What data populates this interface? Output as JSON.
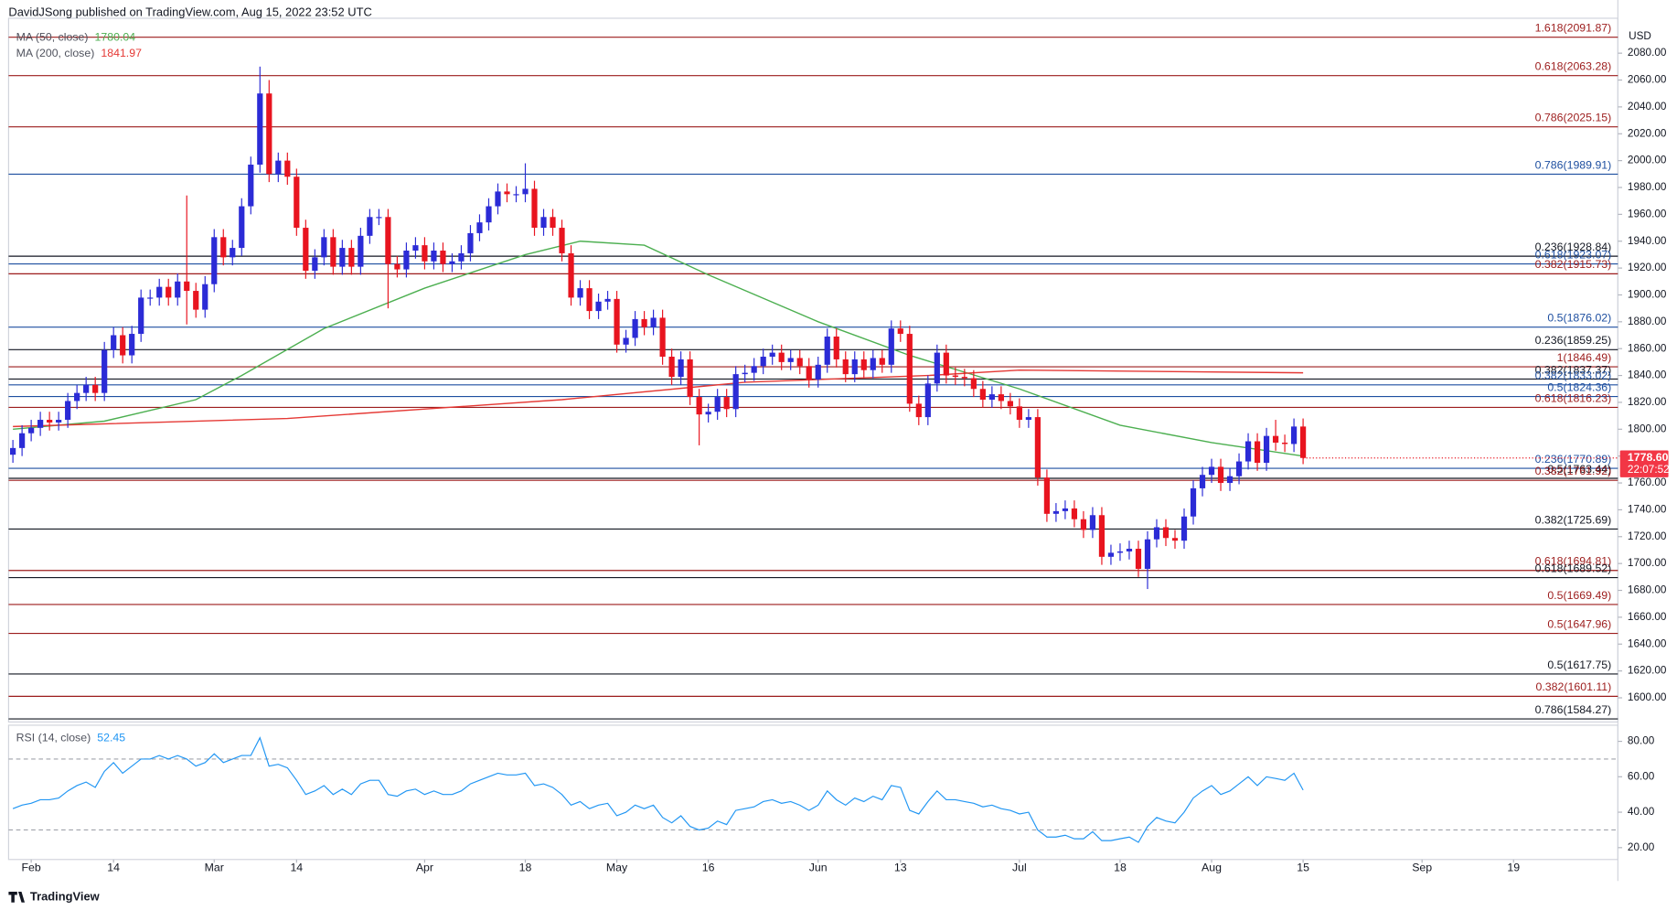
{
  "header": "DavidJSong published on TradingView.com, Aug 15, 2022 23:52 UTC",
  "logo": "TradingView",
  "chart_data": [
    {
      "type": "candlestick",
      "currency": "USD",
      "up_color": "#2b2bd6",
      "down_color": "#e8141f",
      "xlim": [
        -0.47,
        175.4
      ],
      "ylim": [
        1582,
        2106
      ],
      "xticks": [
        {
          "value": 2,
          "label": "Feb"
        },
        {
          "value": 11,
          "label": "14"
        },
        {
          "value": 22,
          "label": "Mar"
        },
        {
          "value": 31,
          "label": "14"
        },
        {
          "value": 45,
          "label": "Apr"
        },
        {
          "value": 56,
          "label": "18"
        },
        {
          "value": 66,
          "label": "May"
        },
        {
          "value": 76,
          "label": "16"
        },
        {
          "value": 88,
          "label": "Jun"
        },
        {
          "value": 97,
          "label": "13"
        },
        {
          "value": 110,
          "label": "Jul"
        },
        {
          "value": 121,
          "label": "18"
        },
        {
          "value": 131,
          "label": "Aug"
        },
        {
          "value": 141,
          "label": "15"
        },
        {
          "value": 154,
          "label": "Sep"
        },
        {
          "value": 164,
          "label": "19"
        }
      ],
      "yticks": [
        {
          "value": 1600,
          "label": "1600.00"
        },
        {
          "value": 1620,
          "label": "1620.00"
        },
        {
          "value": 1640,
          "label": "1640.00"
        },
        {
          "value": 1660,
          "label": "1660.00"
        },
        {
          "value": 1680,
          "label": "1680.00"
        },
        {
          "value": 1700,
          "label": "1700.00"
        },
        {
          "value": 1720,
          "label": "1720.00"
        },
        {
          "value": 1740,
          "label": "1740.00"
        },
        {
          "value": 1760,
          "label": "1760.00"
        },
        {
          "value": 1780,
          "label": "1780.00"
        },
        {
          "value": 1800,
          "label": "1800.00"
        },
        {
          "value": 1820,
          "label": "1820.00"
        },
        {
          "value": 1840,
          "label": "1840.00"
        },
        {
          "value": 1860,
          "label": "1860.00"
        },
        {
          "value": 1880,
          "label": "1880.00"
        },
        {
          "value": 1900,
          "label": "1900.00"
        },
        {
          "value": 1920,
          "label": "1920.00"
        },
        {
          "value": 1940,
          "label": "1940.00"
        },
        {
          "value": 1960,
          "label": "1960.00"
        },
        {
          "value": 1980,
          "label": "1980.00"
        },
        {
          "value": 2000,
          "label": "2000.00"
        },
        {
          "value": 2020,
          "label": "2020.00"
        },
        {
          "value": 2040,
          "label": "2040.00"
        },
        {
          "value": 2060,
          "label": "2060.00"
        },
        {
          "value": 2080,
          "label": "2080.00"
        }
      ],
      "open": [
        1781,
        1786,
        1797,
        1801,
        1807,
        1805,
        1807,
        1821,
        1827,
        1833,
        1827,
        1859,
        1870,
        1855,
        1871,
        1898,
        1898,
        1906,
        1898,
        1910,
        1903,
        1889,
        1908,
        1943,
        1928,
        1935,
        1966,
        1997,
        2050,
        1990,
        2000,
        1988,
        1950,
        1918,
        1928,
        1943,
        1921,
        1935,
        1921,
        1944,
        1958,
        1958,
        1923,
        1919,
        1933,
        1937,
        1925,
        1933,
        1923,
        1925,
        1931,
        1946,
        1954,
        1966,
        1977,
        1975,
        1975,
        1979,
        1950,
        1958,
        1950,
        1931,
        1898,
        1905,
        1888,
        1895,
        1897,
        1863,
        1868,
        1882,
        1876,
        1883,
        1854,
        1839,
        1852,
        1824,
        1811,
        1813,
        1824,
        1815,
        1841,
        1842,
        1847,
        1854,
        1857,
        1850,
        1853,
        1847,
        1837,
        1848,
        1869,
        1852,
        1841,
        1852,
        1844,
        1853,
        1848,
        1875,
        1871,
        1819,
        1809,
        1834,
        1857,
        1840,
        1839,
        1838,
        1830,
        1822,
        1826,
        1821,
        1817,
        1807,
        1809,
        1764,
        1737,
        1739,
        1741,
        1733,
        1725,
        1736,
        1705,
        1708,
        1709,
        1711,
        1696,
        1718,
        1727,
        1719,
        1717,
        1735,
        1756,
        1766,
        1772,
        1760,
        1765,
        1776,
        1791,
        1775,
        1795,
        1790,
        1789,
        1802
      ],
      "high": [
        1792,
        1803,
        1807,
        1813,
        1813,
        1813,
        1827,
        1833,
        1839,
        1839,
        1865,
        1876,
        1876,
        1877,
        1904,
        1904,
        1912,
        1912,
        1916,
        1974,
        1909,
        1914,
        1949,
        1949,
        1941,
        1972,
        2003,
        2070,
        2060,
        2006,
        2006,
        1994,
        1956,
        1934,
        1949,
        1949,
        1941,
        1941,
        1950,
        1964,
        1964,
        1964,
        1929,
        1939,
        1943,
        1943,
        1939,
        1939,
        1931,
        1937,
        1952,
        1960,
        1972,
        1983,
        1983,
        1981,
        1998,
        1985,
        1964,
        1964,
        1956,
        1937,
        1911,
        1911,
        1901,
        1903,
        1903,
        1874,
        1888,
        1888,
        1889,
        1889,
        1860,
        1858,
        1858,
        1830,
        1819,
        1830,
        1830,
        1847,
        1848,
        1853,
        1860,
        1863,
        1863,
        1859,
        1859,
        1853,
        1854,
        1875,
        1875,
        1858,
        1858,
        1858,
        1859,
        1859,
        1881,
        1881,
        1877,
        1825,
        1840,
        1863,
        1863,
        1846,
        1845,
        1844,
        1836,
        1832,
        1832,
        1827,
        1823,
        1815,
        1815,
        1770,
        1745,
        1747,
        1747,
        1739,
        1742,
        1742,
        1714,
        1715,
        1717,
        1717,
        1724,
        1733,
        1733,
        1725,
        1741,
        1762,
        1772,
        1778,
        1778,
        1771,
        1782,
        1797,
        1797,
        1801,
        1807,
        1796,
        1808,
        1808
      ],
      "low": [
        1775,
        1780,
        1791,
        1795,
        1799,
        1799,
        1801,
        1815,
        1821,
        1821,
        1821,
        1853,
        1849,
        1849,
        1865,
        1892,
        1892,
        1892,
        1892,
        1878,
        1883,
        1883,
        1902,
        1922,
        1922,
        1929,
        1960,
        1991,
        1984,
        1984,
        1982,
        1944,
        1912,
        1912,
        1922,
        1915,
        1915,
        1915,
        1915,
        1938,
        1952,
        1890,
        1913,
        1913,
        1927,
        1919,
        1919,
        1917,
        1917,
        1919,
        1925,
        1940,
        1948,
        1960,
        1969,
        1969,
        1969,
        1944,
        1944,
        1944,
        1925,
        1892,
        1892,
        1882,
        1882,
        1889,
        1857,
        1857,
        1862,
        1870,
        1870,
        1848,
        1833,
        1833,
        1818,
        1788,
        1805,
        1807,
        1809,
        1809,
        1835,
        1836,
        1841,
        1848,
        1844,
        1844,
        1841,
        1831,
        1831,
        1842,
        1846,
        1835,
        1835,
        1838,
        1838,
        1842,
        1842,
        1865,
        1813,
        1803,
        1803,
        1828,
        1834,
        1833,
        1832,
        1824,
        1816,
        1816,
        1815,
        1811,
        1801,
        1801,
        1758,
        1731,
        1731,
        1733,
        1727,
        1719,
        1719,
        1699,
        1699,
        1702,
        1703,
        1690,
        1681,
        1712,
        1713,
        1711,
        1711,
        1729,
        1750,
        1760,
        1754,
        1754,
        1759,
        1770,
        1769,
        1769,
        1784,
        1783,
        1783,
        1774
      ],
      "close": [
        1786,
        1797,
        1801,
        1807,
        1805,
        1807,
        1821,
        1827,
        1833,
        1827,
        1859,
        1870,
        1855,
        1871,
        1898,
        1898,
        1906,
        1898,
        1910,
        1903,
        1889,
        1908,
        1943,
        1928,
        1935,
        1966,
        1997,
        2050,
        1990,
        2000,
        1988,
        1950,
        1918,
        1928,
        1943,
        1921,
        1935,
        1921,
        1944,
        1958,
        1958,
        1923,
        1919,
        1933,
        1937,
        1925,
        1933,
        1923,
        1925,
        1931,
        1946,
        1954,
        1966,
        1977,
        1975,
        1975,
        1979,
        1950,
        1958,
        1950,
        1931,
        1898,
        1905,
        1888,
        1895,
        1897,
        1863,
        1868,
        1882,
        1876,
        1883,
        1854,
        1839,
        1852,
        1824,
        1811,
        1813,
        1824,
        1815,
        1841,
        1842,
        1847,
        1854,
        1857,
        1850,
        1853,
        1847,
        1837,
        1848,
        1869,
        1852,
        1841,
        1852,
        1844,
        1853,
        1848,
        1875,
        1871,
        1819,
        1809,
        1834,
        1857,
        1840,
        1839,
        1838,
        1830,
        1822,
        1826,
        1821,
        1817,
        1807,
        1809,
        1764,
        1737,
        1739,
        1741,
        1733,
        1725,
        1736,
        1705,
        1708,
        1709,
        1711,
        1696,
        1718,
        1727,
        1719,
        1717,
        1735,
        1756,
        1766,
        1772,
        1760,
        1765,
        1776,
        1791,
        1775,
        1795,
        1790,
        1789,
        1802,
        1778.6
      ],
      "series": [
        {
          "name": "MA (50, close)",
          "color": "#4caf50",
          "x": [
            0,
            10,
            20,
            25,
            34,
            45,
            56,
            62,
            69,
            76,
            88,
            98,
            110,
            121,
            131,
            141
          ],
          "values": [
            1800,
            1806,
            1822,
            1840,
            1875,
            1905,
            1930,
            1940,
            1937,
            1915,
            1880,
            1855,
            1830,
            1803,
            1790,
            1780.04
          ]
        },
        {
          "name": "MA (200, close)",
          "color": "#e53935",
          "x": [
            0,
            30,
            60,
            80,
            100,
            110,
            141
          ],
          "values": [
            1802,
            1808,
            1822,
            1835,
            1840,
            1844,
            1841.97
          ]
        }
      ],
      "levels": [
        {
          "label": "1.618(2091.87)",
          "value": 2091.87,
          "color": "#9c1c1c"
        },
        {
          "label": "0.618(2063.28)",
          "value": 2063.28,
          "color": "#9c1c1c"
        },
        {
          "label": "0.786(2025.15)",
          "value": 2025.15,
          "color": "#9c1c1c"
        },
        {
          "label": "0.786(1989.91)",
          "value": 1989.91,
          "color": "#1e4fa0"
        },
        {
          "label": "0.236(1928.84)",
          "value": 1928.84,
          "color": "#131722"
        },
        {
          "label": "0.618(1923.07)",
          "value": 1923.07,
          "color": "#1e4fa0"
        },
        {
          "label": "0.382(1915.73)",
          "value": 1915.73,
          "color": "#9c1c1c"
        },
        {
          "label": "0.5(1876.02)",
          "value": 1876.02,
          "color": "#1e4fa0"
        },
        {
          "label": "0.236(1859.25)",
          "value": 1859.25,
          "color": "#131722"
        },
        {
          "label": "1(1846.49)",
          "value": 1846.49,
          "color": "#9c1c1c"
        },
        {
          "label": "0.382(1837.37)",
          "value": 1837.37,
          "color": "#131722"
        },
        {
          "label": "0.382(1833.02)",
          "value": 1833.02,
          "color": "#1e4fa0"
        },
        {
          "label": "0.5(1824.36)",
          "value": 1824.36,
          "color": "#1e4fa0"
        },
        {
          "label": "0.618(1816.23)",
          "value": 1816.23,
          "color": "#9c1c1c"
        },
        {
          "label": "0.236(1770.89)",
          "value": 1770.89,
          "color": "#1e4fa0"
        },
        {
          "label": "0.5(1763.44)",
          "value": 1763.44,
          "color": "#131722"
        },
        {
          "label": "0.382(1761.92)",
          "value": 1761.92,
          "color": "#9c1c1c"
        },
        {
          "label": "0.382(1725.69)",
          "value": 1725.69,
          "color": "#131722"
        },
        {
          "label": "0.618(1694.81)",
          "value": 1694.81,
          "color": "#9c1c1c"
        },
        {
          "label": "0.618(1689.52)",
          "value": 1689.52,
          "color": "#131722"
        },
        {
          "label": "0.5(1669.49)",
          "value": 1669.49,
          "color": "#9c1c1c"
        },
        {
          "label": "0.5(1647.96)",
          "value": 1647.96,
          "color": "#9c1c1c"
        },
        {
          "label": "0.5(1617.75)",
          "value": 1617.75,
          "color": "#131722"
        },
        {
          "label": "0.382(1601.11)",
          "value": 1601.11,
          "color": "#9c1c1c"
        },
        {
          "label": "0.786(1584.27)",
          "value": 1584.27,
          "color": "#131722"
        }
      ],
      "last_price": {
        "value": 1778.6,
        "label": "1778.60"
      },
      "countdown": "22:07:52"
    },
    {
      "type": "line",
      "ylim": [
        13.3,
        89.1
      ],
      "yticks": [
        {
          "value": 20,
          "label": "20.00"
        },
        {
          "value": 40,
          "label": "40.00"
        },
        {
          "value": 60,
          "label": "60.00"
        },
        {
          "value": 80,
          "label": "80.00"
        }
      ],
      "bands": [
        30,
        70
      ],
      "series": [
        {
          "name": "RSI (14, close)",
          "color": "#2196f3",
          "values": [
            42,
            44,
            45,
            47,
            47,
            48,
            52,
            55,
            57,
            54,
            63,
            68,
            62,
            66,
            70,
            70,
            72,
            70,
            72,
            70,
            66,
            68,
            73,
            68,
            70,
            72,
            72,
            82,
            66,
            67,
            65,
            58,
            50,
            52,
            55,
            50,
            53,
            50,
            56,
            58,
            58,
            50,
            49,
            52,
            53,
            50,
            52,
            50,
            50,
            52,
            56,
            58,
            60,
            62,
            61,
            61,
            62,
            55,
            56,
            54,
            50,
            44,
            46,
            42,
            44,
            45,
            38,
            40,
            44,
            42,
            44,
            37,
            34,
            38,
            32,
            30,
            31,
            35,
            33,
            41,
            42,
            43,
            46,
            47,
            45,
            46,
            44,
            41,
            44,
            52,
            47,
            44,
            48,
            46,
            49,
            47,
            55,
            54,
            41,
            39,
            46,
            52,
            47,
            47,
            46,
            45,
            43,
            44,
            42,
            41,
            39,
            40,
            30,
            26,
            26,
            27,
            25,
            25,
            29,
            24,
            24,
            25,
            26,
            23,
            32,
            37,
            35,
            34,
            40,
            48,
            52,
            55,
            50,
            52,
            56,
            60,
            55,
            60,
            59,
            58,
            62,
            52.45
          ]
        }
      ]
    }
  ]
}
